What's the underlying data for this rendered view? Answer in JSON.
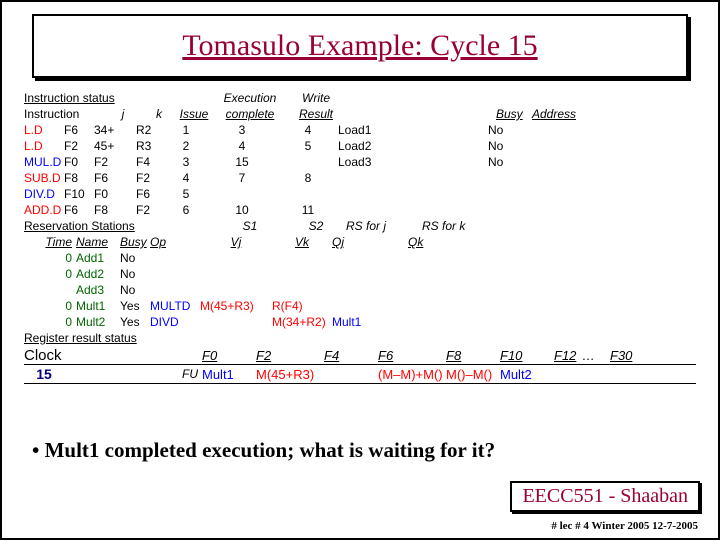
{
  "title": "Tomasulo Example:  Cycle 15",
  "headers": {
    "instruction_status": "Instruction status",
    "instruction": "Instruction",
    "j": "j",
    "k": "k",
    "issue": "Issue",
    "exec_complete_l1": "Execution",
    "exec_complete_l2": "complete",
    "write_l1": "Write",
    "write_l2": "Result",
    "busy": "Busy",
    "address": "Address",
    "reservation_stations": "Reservation Stations",
    "time": "Time",
    "name": "Name",
    "busy2": "Busy",
    "op": "Op",
    "s1": "S1",
    "s2": "S2",
    "rs_j": "RS for j",
    "rs_k": "RS for k",
    "vj": "Vj",
    "vk": "Vk",
    "qj": "Qj",
    "qk": "Qk",
    "register_result_status": "Register result status",
    "clock": "Clock",
    "fu": "FU"
  },
  "instructions": [
    {
      "op": "L.D",
      "d": "F6",
      "j": "34+",
      "k": "R2",
      "issue": "1",
      "exec": "3",
      "write": "4",
      "busyLabel": "Load1",
      "busyVal": "No",
      "op_color": "red"
    },
    {
      "op": "L.D",
      "d": "F2",
      "j": "45+",
      "k": "R3",
      "issue": "2",
      "exec": "4",
      "write": "5",
      "busyLabel": "Load2",
      "busyVal": "No",
      "op_color": "red"
    },
    {
      "op": "MUL.D",
      "d": "F0",
      "j": "F2",
      "k": "F4",
      "issue": "3",
      "exec": "15",
      "write": "",
      "busyLabel": "Load3",
      "busyVal": "No",
      "op_color": "blue"
    },
    {
      "op": "SUB.D",
      "d": "F8",
      "j": "F6",
      "k": "F2",
      "issue": "4",
      "exec": "7",
      "write": "8",
      "busyLabel": "",
      "busyVal": "",
      "op_color": "red"
    },
    {
      "op": "DIV.D",
      "d": "F10",
      "j": "F0",
      "k": "F6",
      "issue": "5",
      "exec": "",
      "write": "",
      "busyLabel": "",
      "busyVal": "",
      "op_color": "blue"
    },
    {
      "op": "ADD.D",
      "d": "F6",
      "j": "F8",
      "k": "F2",
      "issue": "6",
      "exec": "10",
      "write": "11",
      "busyLabel": "",
      "busyVal": "",
      "op_color": "red"
    }
  ],
  "rs": [
    {
      "time": "0",
      "name": "Add1",
      "busy": "No",
      "op": "",
      "vj": "",
      "vk": "",
      "qj": "",
      "qk": "",
      "op_c": ""
    },
    {
      "time": "0",
      "name": "Add2",
      "busy": "No",
      "op": "",
      "vj": "",
      "vk": "",
      "qj": "",
      "qk": "",
      "op_c": ""
    },
    {
      "time": "",
      "name": "Add3",
      "busy": "No",
      "op": "",
      "vj": "",
      "vk": "",
      "qj": "",
      "qk": "",
      "op_c": ""
    },
    {
      "time": "0",
      "name": "Mult1",
      "busy": "Yes",
      "op": "MULTD",
      "vj": "M(45+R3)",
      "vk": "R(F4)",
      "qj": "",
      "qk": "",
      "op_c": "blue"
    },
    {
      "time": "0",
      "name": "Mult2",
      "busy": "Yes",
      "op": "DIVD",
      "vj": "",
      "vk": "M(34+R2)",
      "qj": "Mult1",
      "qk": "",
      "op_c": "blue"
    }
  ],
  "clock": "15",
  "regs": {
    "F0": "Mult1",
    "F0_c": "blue",
    "F2": "M(45+R3)",
    "F2_c": "red",
    "F4": "",
    "F4_c": "",
    "F6": "(M–M)+M()",
    "F6_c": "red",
    "F8": "M()–M()",
    "F8_c": "red",
    "F10": "Mult2",
    "F10_c": "blue",
    "F12": "",
    "F12_c": "",
    "dots": "…",
    "F30": ""
  },
  "reg_headers": [
    "F0",
    "F2",
    "F4",
    "F6",
    "F8",
    "F10",
    "F12",
    "…",
    "F30"
  ],
  "bullet": "• Mult1 completed execution; what is waiting for it?",
  "footer1": "EECC551 - Shaaban",
  "footer2": "#  lec # 4  Winter 2005   12-7-2005"
}
